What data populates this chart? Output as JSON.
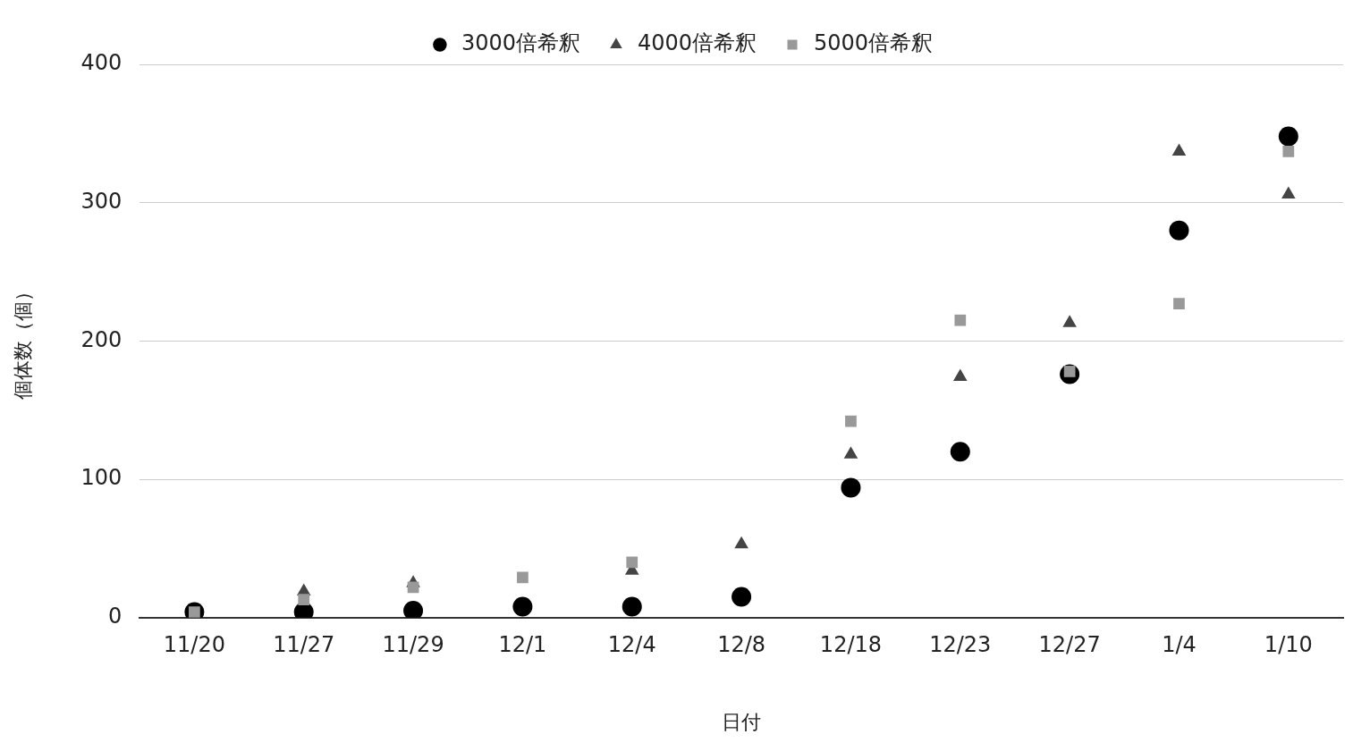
{
  "chart_data": {
    "type": "scatter",
    "xlabel": "日付",
    "ylabel": "個体数（個）",
    "categories": [
      "11/20",
      "11/27",
      "11/29",
      "12/1",
      "12/4",
      "12/8",
      "12/18",
      "12/23",
      "12/27",
      "1/4",
      "1/10"
    ],
    "series": [
      {
        "name": "3000倍希釈",
        "color": "#000000",
        "marker": "circle",
        "values": [
          4,
          4,
          5,
          8,
          8,
          15,
          94,
          120,
          176,
          280,
          348
        ]
      },
      {
        "name": "4000倍希釈",
        "color": "#444444",
        "marker": "triangle",
        "values": [
          null,
          19,
          25,
          null,
          34,
          53,
          118,
          174,
          213,
          337,
          306
        ]
      },
      {
        "name": "5000倍希釈",
        "color": "#999999",
        "marker": "square",
        "values": [
          4,
          13,
          22,
          29,
          40,
          null,
          142,
          215,
          178,
          227,
          337
        ]
      }
    ],
    "ylim": [
      0,
      400
    ],
    "yticks": [
      0,
      100,
      200,
      300,
      400
    ],
    "grid": "y",
    "legend": "top"
  }
}
